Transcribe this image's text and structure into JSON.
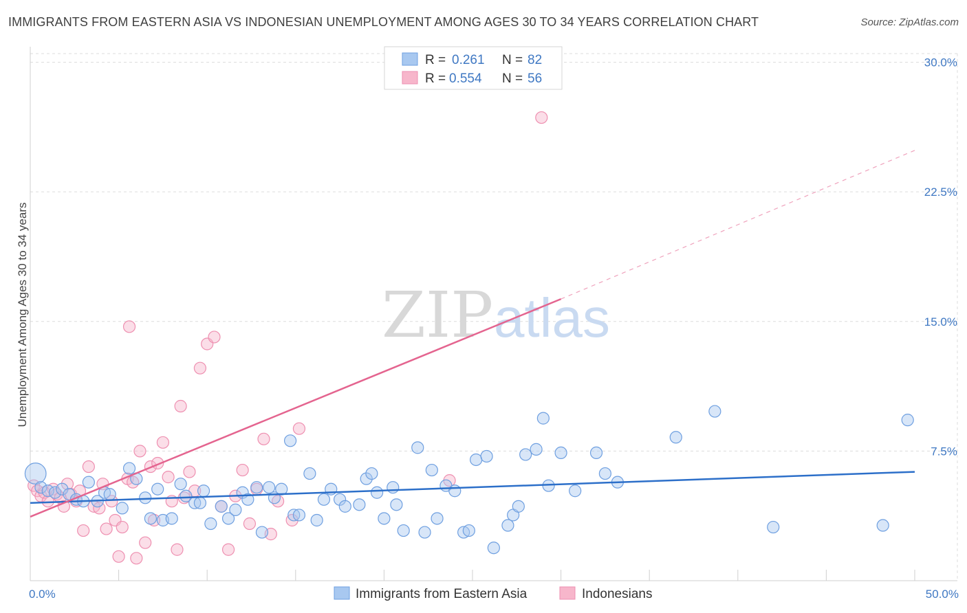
{
  "header": {
    "title": "IMMIGRANTS FROM EASTERN ASIA VS INDONESIAN UNEMPLOYMENT AMONG AGES 30 TO 34 YEARS CORRELATION CHART",
    "source": "Source: ZipAtlas.com"
  },
  "watermark": {
    "zip": "ZIP",
    "atlas": "atlas"
  },
  "legend": {
    "blue": {
      "r_label": "R =",
      "r_value": "0.261",
      "n_label": "N =",
      "n_value": "82"
    },
    "pink": {
      "r_label": "R =",
      "r_value": "0.554",
      "n_label": "N =",
      "n_value": "56"
    }
  },
  "colors": {
    "blue_fill": "#a8c8f0",
    "blue_stroke": "#6e9fe0",
    "blue_line": "#2c6fc9",
    "pink_fill": "#f7b6cb",
    "pink_stroke": "#ee8fb0",
    "pink_line": "#e4648f",
    "grid": "#dcdcdc",
    "tick_text": "#3f78c3"
  },
  "chart_data": {
    "type": "scatter",
    "xlabel": "",
    "ylabel": "Unemployment Among Ages 30 to 34 years",
    "xlim": [
      0,
      50
    ],
    "ylim": [
      0,
      30.5
    ],
    "x_tick_labels": [
      {
        "v": 0,
        "label": "0.0%"
      },
      {
        "v": 50,
        "label": "50.0%"
      }
    ],
    "y_tick_labels": [
      {
        "v": 7.5,
        "label": "7.5%"
      },
      {
        "v": 15,
        "label": "15.0%"
      },
      {
        "v": 22.5,
        "label": "22.5%"
      },
      {
        "v": 30,
        "label": "30.0%"
      }
    ],
    "grid": true,
    "legend_position": "top-center",
    "series": [
      {
        "name": "Immigrants from Eastern Asia",
        "color": "blue",
        "r": 0.261,
        "n": 82,
        "trend": {
          "x0": 0,
          "y0": 4.5,
          "x1": 50,
          "y1": 6.3
        },
        "points": [
          [
            0.3,
            6.2,
            1.8
          ],
          [
            0.6,
            5.4,
            1
          ],
          [
            1.0,
            5.2,
            1
          ],
          [
            1.4,
            5.1,
            1
          ],
          [
            1.8,
            5.3,
            1
          ],
          [
            2.2,
            5.0,
            1
          ],
          [
            2.6,
            4.7,
            1
          ],
          [
            3.0,
            4.6,
            1
          ],
          [
            3.3,
            5.7,
            1
          ],
          [
            3.8,
            4.6,
            1
          ],
          [
            4.2,
            5.1,
            1
          ],
          [
            4.5,
            5.0,
            1
          ],
          [
            5.2,
            4.2,
            1
          ],
          [
            5.6,
            6.5,
            1
          ],
          [
            6.0,
            5.9,
            1
          ],
          [
            6.5,
            4.8,
            1
          ],
          [
            6.8,
            3.6,
            1
          ],
          [
            7.2,
            5.3,
            1
          ],
          [
            7.5,
            3.5,
            1
          ],
          [
            8.0,
            3.6,
            1
          ],
          [
            8.5,
            5.6,
            1
          ],
          [
            8.8,
            4.9,
            1
          ],
          [
            9.3,
            4.5,
            1
          ],
          [
            9.6,
            4.5,
            1
          ],
          [
            9.8,
            5.2,
            1
          ],
          [
            10.2,
            3.3,
            1
          ],
          [
            10.8,
            4.3,
            1
          ],
          [
            11.2,
            3.6,
            1
          ],
          [
            11.6,
            4.1,
            1
          ],
          [
            12.0,
            5.1,
            1
          ],
          [
            12.3,
            4.7,
            1
          ],
          [
            12.8,
            5.4,
            1
          ],
          [
            13.1,
            2.8,
            1
          ],
          [
            13.5,
            5.4,
            1
          ],
          [
            13.8,
            4.8,
            1
          ],
          [
            14.2,
            5.3,
            1
          ],
          [
            14.7,
            8.1,
            1
          ],
          [
            14.9,
            3.8,
            1
          ],
          [
            15.2,
            3.8,
            1
          ],
          [
            15.8,
            6.2,
            1
          ],
          [
            16.2,
            3.5,
            1
          ],
          [
            16.6,
            4.7,
            1
          ],
          [
            17.0,
            5.3,
            1
          ],
          [
            17.5,
            4.7,
            1
          ],
          [
            17.8,
            4.3,
            1
          ],
          [
            18.6,
            4.4,
            1
          ],
          [
            19.0,
            5.9,
            1
          ],
          [
            19.3,
            6.2,
            1
          ],
          [
            19.6,
            5.1,
            1
          ],
          [
            20.0,
            3.6,
            1
          ],
          [
            20.5,
            5.4,
            1
          ],
          [
            20.7,
            4.4,
            1
          ],
          [
            21.1,
            2.9,
            1
          ],
          [
            21.9,
            7.7,
            1
          ],
          [
            22.3,
            2.8,
            1
          ],
          [
            22.7,
            6.4,
            1
          ],
          [
            23.0,
            3.6,
            1
          ],
          [
            23.5,
            5.5,
            1
          ],
          [
            24.0,
            5.2,
            1
          ],
          [
            24.5,
            2.8,
            1
          ],
          [
            24.8,
            2.9,
            1
          ],
          [
            25.2,
            7.0,
            1
          ],
          [
            25.8,
            7.2,
            1
          ],
          [
            26.2,
            1.9,
            1
          ],
          [
            27.0,
            3.2,
            1
          ],
          [
            27.3,
            3.8,
            1
          ],
          [
            27.6,
            4.3,
            1
          ],
          [
            28.0,
            7.3,
            1
          ],
          [
            28.6,
            7.6,
            1
          ],
          [
            29.0,
            9.4,
            1
          ],
          [
            29.3,
            5.5,
            1
          ],
          [
            30.0,
            7.4,
            1
          ],
          [
            30.8,
            5.2,
            1
          ],
          [
            32.0,
            7.4,
            1
          ],
          [
            32.5,
            6.2,
            1
          ],
          [
            33.2,
            5.7,
            1
          ],
          [
            36.5,
            8.3,
            1
          ],
          [
            38.7,
            9.8,
            1
          ],
          [
            42.0,
            3.1,
            1
          ],
          [
            48.2,
            3.2,
            1
          ],
          [
            49.6,
            9.3,
            1
          ]
        ]
      },
      {
        "name": "Indonesians",
        "color": "pink",
        "r": 0.554,
        "n": 56,
        "trend": {
          "x0": 0,
          "y0": 3.7,
          "x1": 30,
          "y1": 16.3
        },
        "trend_dashed": {
          "x0": 30,
          "y0": 16.3,
          "x1": 50,
          "y1": 24.9
        },
        "points": [
          [
            0.2,
            5.5,
            1
          ],
          [
            0.4,
            5.2,
            1
          ],
          [
            0.6,
            4.9,
            1
          ],
          [
            0.8,
            5.1,
            1
          ],
          [
            1.0,
            4.6,
            1
          ],
          [
            1.3,
            5.3,
            1
          ],
          [
            1.5,
            5.0,
            1
          ],
          [
            1.7,
            4.8,
            1
          ],
          [
            1.9,
            4.3,
            1
          ],
          [
            2.1,
            5.6,
            1
          ],
          [
            2.3,
            5.0,
            1
          ],
          [
            2.6,
            4.6,
            1
          ],
          [
            2.8,
            5.2,
            1
          ],
          [
            3.0,
            2.9,
            1
          ],
          [
            3.3,
            6.6,
            1
          ],
          [
            3.6,
            4.3,
            1
          ],
          [
            3.9,
            4.2,
            1
          ],
          [
            4.1,
            5.6,
            1
          ],
          [
            4.3,
            3.0,
            1
          ],
          [
            4.6,
            4.6,
            1
          ],
          [
            4.8,
            3.5,
            1
          ],
          [
            5.0,
            1.4,
            1
          ],
          [
            5.2,
            3.1,
            1
          ],
          [
            5.5,
            5.9,
            1
          ],
          [
            5.6,
            14.7,
            1
          ],
          [
            5.8,
            5.7,
            1
          ],
          [
            6.0,
            1.3,
            1
          ],
          [
            6.2,
            7.5,
            1
          ],
          [
            6.5,
            2.2,
            1
          ],
          [
            6.8,
            6.6,
            1
          ],
          [
            7.0,
            3.5,
            1
          ],
          [
            7.2,
            6.8,
            1
          ],
          [
            7.5,
            8.0,
            1
          ],
          [
            7.8,
            6.0,
            1
          ],
          [
            8.0,
            4.6,
            1
          ],
          [
            8.3,
            1.8,
            1
          ],
          [
            8.5,
            10.1,
            1
          ],
          [
            8.7,
            4.8,
            1
          ],
          [
            9.0,
            6.3,
            1
          ],
          [
            9.3,
            5.2,
            1
          ],
          [
            9.6,
            12.3,
            1
          ],
          [
            10.0,
            13.7,
            1
          ],
          [
            10.4,
            14.1,
            1
          ],
          [
            10.8,
            4.3,
            1
          ],
          [
            11.2,
            1.8,
            1
          ],
          [
            11.6,
            4.9,
            1
          ],
          [
            12.0,
            6.4,
            1
          ],
          [
            12.4,
            3.3,
            1
          ],
          [
            12.8,
            5.3,
            1
          ],
          [
            13.2,
            8.2,
            1
          ],
          [
            13.6,
            2.7,
            1
          ],
          [
            14.0,
            4.6,
            1
          ],
          [
            14.8,
            3.5,
            1
          ],
          [
            15.2,
            8.8,
            1
          ],
          [
            23.7,
            5.8,
            1
          ],
          [
            28.9,
            26.8,
            1
          ]
        ]
      }
    ]
  },
  "bottom_legend": [
    {
      "key": "blue",
      "label": "Immigrants from Eastern Asia"
    },
    {
      "key": "pink",
      "label": "Indonesians"
    }
  ]
}
